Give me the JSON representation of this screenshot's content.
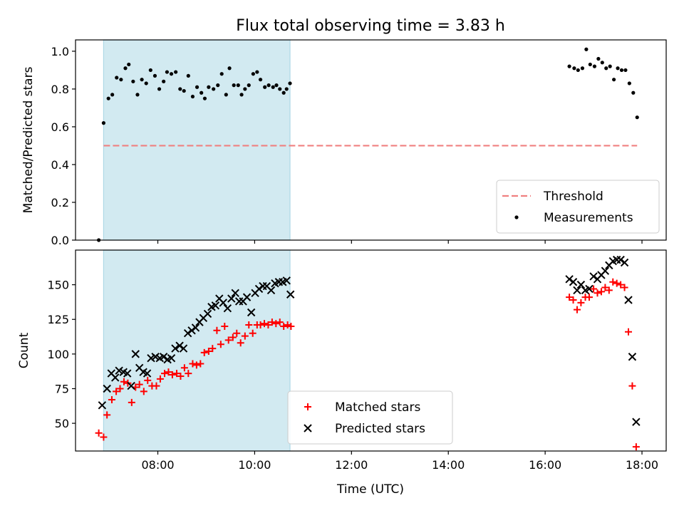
{
  "chart_data": {
    "title": "Flux total observing time = 3.83 h",
    "xlabel": "Time (UTC)",
    "x_unit": "hours UTC",
    "xlim": [
      6.3,
      18.5
    ],
    "x_tick_values": [
      8,
      10,
      12,
      14,
      16,
      18
    ],
    "x_ticks": [
      "08:00",
      "10:00",
      "12:00",
      "14:00",
      "16:00",
      "18:00"
    ],
    "shaded_interval": {
      "start": 6.88,
      "end": 10.73,
      "color": "#add8e6"
    },
    "panels": [
      {
        "type": "scatter",
        "ylabel": "Matched/Predicted stars",
        "ylim": [
          0,
          1.06
        ],
        "y_tick_values": [
          0,
          0.2,
          0.4,
          0.6,
          0.8,
          1.0
        ],
        "y_ticks": [
          "0.0",
          "0.2",
          "0.4",
          "0.6",
          "0.8",
          "1.0"
        ],
        "legend_position": "lower-right",
        "threshold": {
          "name": "Threshold",
          "value": 0.5,
          "x_range": [
            6.88,
            17.9
          ],
          "color": "#f08080",
          "style": "dashed"
        },
        "series": [
          {
            "name": "Measurements",
            "marker": "dot",
            "color": "#000000",
            "points": [
              [
                6.78,
                0.0
              ],
              [
                6.88,
                0.62
              ],
              [
                6.98,
                0.75
              ],
              [
                7.06,
                0.77
              ],
              [
                7.15,
                0.86
              ],
              [
                7.24,
                0.85
              ],
              [
                7.33,
                0.91
              ],
              [
                7.4,
                0.93
              ],
              [
                7.49,
                0.84
              ],
              [
                7.58,
                0.77
              ],
              [
                7.67,
                0.85
              ],
              [
                7.76,
                0.83
              ],
              [
                7.85,
                0.9
              ],
              [
                7.94,
                0.87
              ],
              [
                8.03,
                0.8
              ],
              [
                8.12,
                0.84
              ],
              [
                8.19,
                0.89
              ],
              [
                8.28,
                0.88
              ],
              [
                8.37,
                0.89
              ],
              [
                8.46,
                0.8
              ],
              [
                8.54,
                0.79
              ],
              [
                8.63,
                0.87
              ],
              [
                8.72,
                0.76
              ],
              [
                8.81,
                0.81
              ],
              [
                8.9,
                0.78
              ],
              [
                8.97,
                0.75
              ],
              [
                9.05,
                0.81
              ],
              [
                9.15,
                0.8
              ],
              [
                9.24,
                0.82
              ],
              [
                9.32,
                0.88
              ],
              [
                9.41,
                0.77
              ],
              [
                9.48,
                0.91
              ],
              [
                9.57,
                0.82
              ],
              [
                9.66,
                0.82
              ],
              [
                9.73,
                0.77
              ],
              [
                9.8,
                0.8
              ],
              [
                9.88,
                0.82
              ],
              [
                9.97,
                0.88
              ],
              [
                10.05,
                0.89
              ],
              [
                10.12,
                0.85
              ],
              [
                10.21,
                0.81
              ],
              [
                10.29,
                0.82
              ],
              [
                10.38,
                0.81
              ],
              [
                10.45,
                0.82
              ],
              [
                10.52,
                0.8
              ],
              [
                10.6,
                0.78
              ],
              [
                10.66,
                0.8
              ],
              [
                10.73,
                0.83
              ],
              [
                16.5,
                0.92
              ],
              [
                16.6,
                0.91
              ],
              [
                16.68,
                0.9
              ],
              [
                16.77,
                0.91
              ],
              [
                16.85,
                1.01
              ],
              [
                16.93,
                0.93
              ],
              [
                17.02,
                0.92
              ],
              [
                17.1,
                0.96
              ],
              [
                17.18,
                0.94
              ],
              [
                17.26,
                0.91
              ],
              [
                17.34,
                0.92
              ],
              [
                17.42,
                0.85
              ],
              [
                17.5,
                0.91
              ],
              [
                17.58,
                0.9
              ],
              [
                17.66,
                0.9
              ],
              [
                17.74,
                0.83
              ],
              [
                17.82,
                0.78
              ],
              [
                17.9,
                0.65
              ]
            ]
          }
        ]
      },
      {
        "type": "scatter",
        "ylabel": "Count",
        "ylim": [
          30,
          175
        ],
        "y_tick_values": [
          50,
          75,
          100,
          125,
          150
        ],
        "y_ticks": [
          "50",
          "75",
          "100",
          "125",
          "150"
        ],
        "legend_position": "lower-center",
        "series": [
          {
            "name": "Matched stars",
            "marker": "plus",
            "color": "#ff0000",
            "points": [
              [
                6.78,
                43
              ],
              [
                6.88,
                40
              ],
              [
                6.95,
                56
              ],
              [
                7.05,
                67
              ],
              [
                7.14,
                73
              ],
              [
                7.22,
                75
              ],
              [
                7.3,
                80
              ],
              [
                7.38,
                79
              ],
              [
                7.46,
                65
              ],
              [
                7.54,
                76
              ],
              [
                7.62,
                78
              ],
              [
                7.71,
                73
              ],
              [
                7.79,
                81
              ],
              [
                7.88,
                77
              ],
              [
                7.97,
                77
              ],
              [
                8.05,
                82
              ],
              [
                8.14,
                86
              ],
              [
                8.22,
                87
              ],
              [
                8.3,
                85
              ],
              [
                8.39,
                86
              ],
              [
                8.47,
                84
              ],
              [
                8.55,
                90
              ],
              [
                8.63,
                86
              ],
              [
                8.72,
                93
              ],
              [
                8.8,
                92
              ],
              [
                8.88,
                93
              ],
              [
                8.96,
                101
              ],
              [
                9.05,
                102
              ],
              [
                9.13,
                104
              ],
              [
                9.22,
                117
              ],
              [
                9.3,
                107
              ],
              [
                9.38,
                120
              ],
              [
                9.46,
                110
              ],
              [
                9.55,
                112
              ],
              [
                9.63,
                115
              ],
              [
                9.71,
                108
              ],
              [
                9.8,
                113
              ],
              [
                9.88,
                121
              ],
              [
                9.96,
                115
              ],
              [
                10.05,
                121
              ],
              [
                10.12,
                121
              ],
              [
                10.2,
                122
              ],
              [
                10.28,
                121
              ],
              [
                10.36,
                123
              ],
              [
                10.44,
                122
              ],
              [
                10.52,
                123
              ],
              [
                10.6,
                120
              ],
              [
                10.68,
                121
              ],
              [
                10.75,
                120
              ],
              [
                16.5,
                141
              ],
              [
                16.58,
                139
              ],
              [
                16.66,
                132
              ],
              [
                16.74,
                137
              ],
              [
                16.83,
                141
              ],
              [
                16.91,
                141
              ],
              [
                17.0,
                147
              ],
              [
                17.08,
                144
              ],
              [
                17.16,
                145
              ],
              [
                17.24,
                148
              ],
              [
                17.32,
                146
              ],
              [
                17.4,
                152
              ],
              [
                17.48,
                151
              ],
              [
                17.56,
                150
              ],
              [
                17.64,
                148
              ],
              [
                17.72,
                116
              ],
              [
                17.8,
                77
              ],
              [
                17.88,
                33
              ]
            ]
          },
          {
            "name": "Predicted stars",
            "marker": "x",
            "color": "#000000",
            "points": [
              [
                6.85,
                63
              ],
              [
                6.95,
                75
              ],
              [
                7.04,
                86
              ],
              [
                7.12,
                83
              ],
              [
                7.2,
                88
              ],
              [
                7.29,
                87
              ],
              [
                7.37,
                86
              ],
              [
                7.45,
                77
              ],
              [
                7.54,
                100
              ],
              [
                7.62,
                90
              ],
              [
                7.7,
                87
              ],
              [
                7.78,
                86
              ],
              [
                7.86,
                97
              ],
              [
                7.95,
                98
              ],
              [
                8.04,
                97
              ],
              [
                8.12,
                98
              ],
              [
                8.2,
                96
              ],
              [
                8.28,
                97
              ],
              [
                8.36,
                104
              ],
              [
                8.45,
                106
              ],
              [
                8.53,
                104
              ],
              [
                8.62,
                115
              ],
              [
                8.7,
                117
              ],
              [
                8.78,
                119
              ],
              [
                8.86,
                123
              ],
              [
                8.94,
                126
              ],
              [
                9.03,
                129
              ],
              [
                9.11,
                134
              ],
              [
                9.19,
                135
              ],
              [
                9.27,
                140
              ],
              [
                9.35,
                137
              ],
              [
                9.44,
                133
              ],
              [
                9.52,
                140
              ],
              [
                9.6,
                144
              ],
              [
                9.68,
                138
              ],
              [
                9.76,
                138
              ],
              [
                9.84,
                141
              ],
              [
                9.93,
                130
              ],
              [
                10.01,
                144
              ],
              [
                10.09,
                147
              ],
              [
                10.17,
                149
              ],
              [
                10.25,
                149
              ],
              [
                10.34,
                146
              ],
              [
                10.42,
                151
              ],
              [
                10.5,
                152
              ],
              [
                10.58,
                152
              ],
              [
                10.66,
                153
              ],
              [
                10.74,
                143
              ],
              [
                16.5,
                154
              ],
              [
                16.58,
                152
              ],
              [
                16.66,
                146
              ],
              [
                16.74,
                150
              ],
              [
                16.83,
                146
              ],
              [
                16.91,
                147
              ],
              [
                17.0,
                156
              ],
              [
                17.08,
                154
              ],
              [
                17.16,
                157
              ],
              [
                17.24,
                160
              ],
              [
                17.32,
                164
              ],
              [
                17.4,
                167
              ],
              [
                17.48,
                168
              ],
              [
                17.56,
                168
              ],
              [
                17.64,
                166
              ],
              [
                17.72,
                139
              ],
              [
                17.8,
                98
              ],
              [
                17.88,
                51
              ]
            ]
          }
        ]
      }
    ]
  }
}
